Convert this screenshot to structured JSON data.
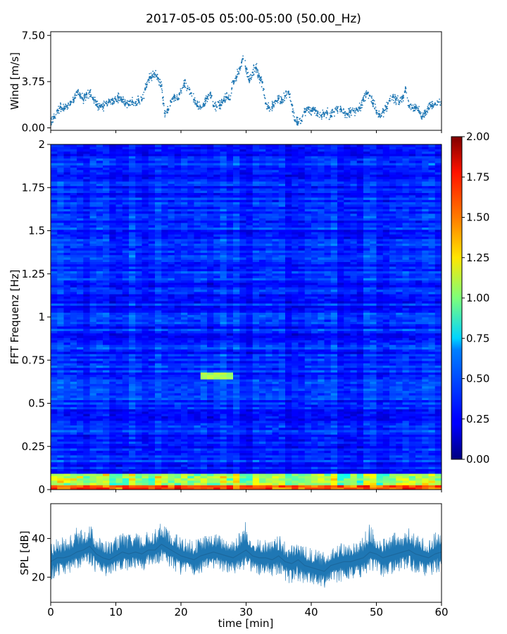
{
  "chart_data": [
    {
      "type": "scatter",
      "title": "2017-05-05 05:00-05:00 (50.00_Hz)",
      "ylabel": "Wind [m/s]",
      "xlim": [
        0,
        60
      ],
      "ylim": [
        -0.2,
        7.8
      ],
      "yticks": [
        "0.00",
        "3.75",
        "7.50"
      ],
      "ytick_values": [
        0,
        3.75,
        7.5
      ],
      "color": "#1f77b4",
      "x": [
        0,
        0.5,
        1,
        1.5,
        2,
        2.5,
        3,
        3.5,
        4,
        4.5,
        5,
        5.5,
        6,
        6.5,
        7,
        7.5,
        8,
        8.5,
        9,
        9.5,
        10,
        10.5,
        11,
        11.5,
        12,
        12.5,
        13,
        13.5,
        14,
        14.5,
        15,
        15.5,
        16,
        16.5,
        17,
        17.5,
        18,
        18.5,
        19,
        19.5,
        20,
        20.5,
        21,
        21.5,
        22,
        22.5,
        23,
        23.5,
        24,
        24.5,
        25,
        25.5,
        26,
        26.5,
        27,
        27.5,
        28,
        28.5,
        29,
        29.5,
        30,
        30.5,
        31,
        31.5,
        32,
        32.5,
        33,
        33.5,
        34,
        34.5,
        35,
        35.5,
        36,
        36.5,
        37,
        37.5,
        38,
        38.5,
        39,
        39.5,
        40,
        40.5,
        41,
        41.5,
        42,
        42.5,
        43,
        43.5,
        44,
        44.5,
        45,
        45.5,
        46,
        46.5,
        47,
        47.5,
        48,
        48.5,
        49,
        49.5,
        50,
        50.5,
        51,
        51.5,
        52,
        52.5,
        53,
        53.5,
        54,
        54.5,
        55,
        55.5,
        56,
        56.5,
        57,
        57.5,
        58,
        58.5,
        59,
        59.5,
        60
      ],
      "y": [
        0.5,
        0.8,
        1.4,
        1.7,
        1.6,
        1.7,
        1.9,
        2.3,
        2.9,
        2.6,
        2.3,
        2.7,
        2.9,
        2.4,
        1.9,
        1.8,
        1.7,
        2.0,
        2.2,
        2.0,
        2.3,
        2.5,
        2.3,
        2.0,
        1.9,
        2.1,
        2.0,
        2.2,
        2.3,
        3.1,
        3.9,
        4.1,
        4.3,
        4.0,
        3.4,
        1.2,
        1.5,
        2.1,
        2.6,
        2.3,
        3.0,
        3.6,
        3.2,
        2.8,
        2.3,
        1.8,
        1.7,
        1.9,
        2.4,
        2.8,
        1.8,
        1.7,
        1.9,
        2.2,
        2.5,
        2.3,
        3.8,
        4.1,
        4.8,
        5.6,
        4.8,
        3.8,
        4.5,
        4.9,
        4.2,
        3.7,
        2.0,
        1.6,
        1.7,
        2.2,
        2.4,
        2.1,
        2.6,
        2.9,
        1.9,
        0.6,
        0.4,
        0.6,
        1.3,
        1.6,
        1.4,
        1.5,
        1.2,
        1.0,
        1.1,
        1.2,
        1.0,
        1.3,
        1.6,
        1.5,
        1.2,
        1.1,
        1.3,
        1.4,
        1.5,
        1.6,
        2.3,
        2.8,
        2.6,
        2.0,
        1.4,
        1.1,
        1.3,
        1.7,
        2.2,
        2.5,
        2.3,
        2.1,
        2.4,
        3.2,
        1.8,
        1.6,
        1.7,
        1.4,
        0.9,
        1.2,
        1.6,
        1.8,
        1.9,
        2.1,
        2.0
      ]
    },
    {
      "type": "heatmap",
      "ylabel": "FFT Frequenz [Hz]",
      "xlim": [
        0,
        60
      ],
      "ylim": [
        0,
        2
      ],
      "yticks": [
        "0",
        "0.25",
        "0.5",
        "0.75",
        "1",
        "1.25",
        "1.5",
        "1.75",
        "2"
      ],
      "ytick_values": [
        0,
        0.25,
        0.5,
        0.75,
        1,
        1.25,
        1.5,
        1.75,
        2
      ],
      "colormap": "jet",
      "colorbar": {
        "range": [
          0,
          2
        ],
        "ticks": [
          "0.00",
          "0.25",
          "0.50",
          "0.75",
          "1.00",
          "1.25",
          "1.50",
          "1.75",
          "2.00"
        ],
        "tick_values": [
          0,
          0.25,
          0.5,
          0.75,
          1,
          1.25,
          1.5,
          1.75,
          2
        ]
      },
      "description_values": {
        "background_level": 0.3,
        "low_frequency_band_hz": [
          0,
          0.1
        ],
        "low_frequency_level": 1.0,
        "lowest_bin_level": 1.6,
        "highlight_patch": {
          "x_min": [
            23,
            28
          ],
          "f_hz": 0.66,
          "level": 1.1
        }
      }
    },
    {
      "type": "area",
      "ylabel": "SPL [dB]",
      "xlabel": "time [min]",
      "xlim": [
        0,
        60
      ],
      "ylim": [
        7,
        58
      ],
      "yticks": [
        "20",
        "40"
      ],
      "ytick_values": [
        20,
        40
      ],
      "xticks": [
        "0",
        "10",
        "20",
        "30",
        "40",
        "50",
        "60"
      ],
      "xtick_values": [
        0,
        10,
        20,
        30,
        40,
        50,
        60
      ],
      "color": "#1f77b4",
      "x": [
        0,
        1,
        2,
        3,
        4,
        5,
        6,
        7,
        8,
        9,
        10,
        11,
        12,
        13,
        14,
        15,
        16,
        17,
        18,
        19,
        20,
        21,
        22,
        23,
        24,
        25,
        26,
        27,
        28,
        29,
        30,
        31,
        32,
        33,
        34,
        35,
        36,
        37,
        38,
        39,
        40,
        41,
        42,
        43,
        44,
        45,
        46,
        47,
        48,
        49,
        50,
        51,
        52,
        53,
        54,
        55,
        56,
        57,
        58,
        59,
        60
      ],
      "y_mean": [
        28,
        30,
        30,
        31,
        33,
        34,
        36,
        32,
        30,
        29,
        31,
        33,
        32,
        33,
        32,
        34,
        34,
        37,
        35,
        33,
        31,
        30,
        29,
        31,
        32,
        33,
        32,
        31,
        30,
        32,
        34,
        31,
        30,
        30,
        29,
        31,
        28,
        27,
        29,
        26,
        25,
        24,
        23,
        26,
        27,
        28,
        28,
        29,
        30,
        33,
        32,
        30,
        31,
        32,
        33,
        34,
        32,
        31,
        30,
        32,
        33
      ],
      "y_low": [
        18,
        20,
        21,
        22,
        24,
        26,
        26,
        22,
        21,
        20,
        22,
        24,
        23,
        24,
        23,
        25,
        25,
        27,
        25,
        23,
        21,
        21,
        20,
        22,
        23,
        24,
        23,
        22,
        21,
        23,
        24,
        22,
        21,
        21,
        20,
        21,
        18,
        16,
        18,
        16,
        16,
        15,
        14,
        16,
        17,
        18,
        18,
        19,
        20,
        23,
        22,
        20,
        21,
        22,
        23,
        24,
        22,
        21,
        20,
        22,
        23
      ],
      "y_high": [
        38,
        40,
        41,
        42,
        46,
        44,
        48,
        42,
        40,
        39,
        41,
        43,
        42,
        43,
        42,
        44,
        46,
        48,
        45,
        43,
        41,
        40,
        39,
        41,
        42,
        43,
        42,
        41,
        41,
        44,
        50,
        41,
        40,
        40,
        39,
        42,
        38,
        37,
        39,
        36,
        35,
        34,
        33,
        36,
        37,
        38,
        38,
        39,
        41,
        49,
        42,
        40,
        41,
        44,
        43,
        46,
        42,
        41,
        40,
        43,
        48
      ]
    }
  ]
}
